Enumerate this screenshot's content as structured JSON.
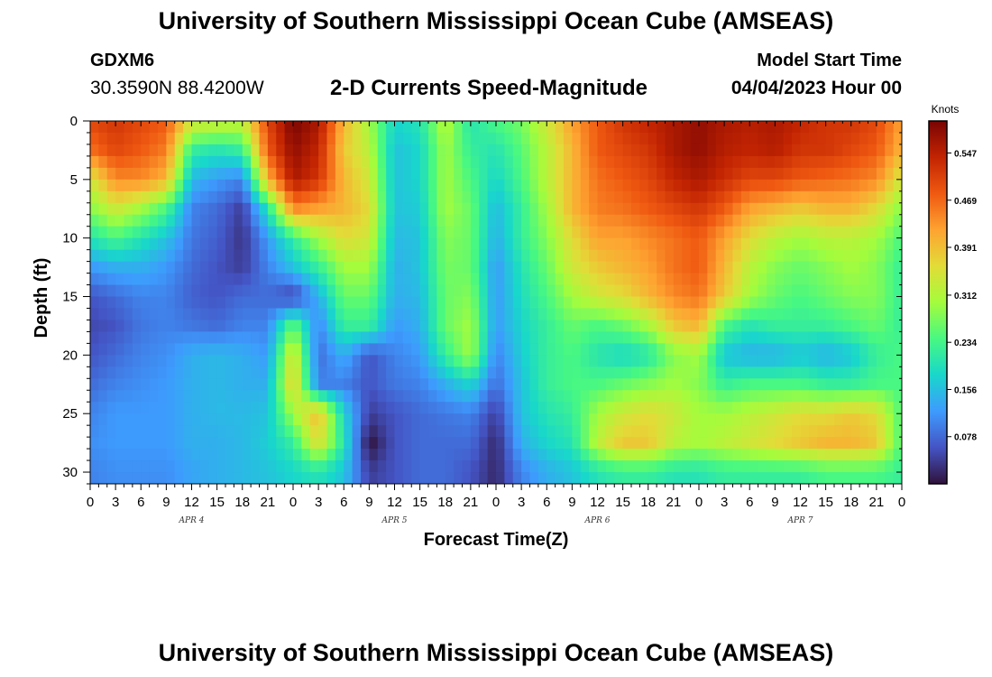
{
  "header": {
    "title": "University of Southern Mississippi Ocean Cube (AMSEAS)",
    "station": "GDXM6",
    "coords": "30.3590N  88.4200W",
    "subtitle": "2-D Currents Speed-Magnitude",
    "model_start_label": "Model Start Time",
    "model_start_value": "04/04/2023 Hour 00"
  },
  "footer": {
    "title": "University of Southern Mississippi Ocean Cube (AMSEAS)"
  },
  "chart_data": {
    "type": "heatmap",
    "title": "2-D Currents Speed-Magnitude",
    "xlabel": "Forecast Time(Z)",
    "ylabel": "Depth (ft)",
    "xlim": [
      0,
      96
    ],
    "ylim": [
      0,
      31
    ],
    "y_inverted": true,
    "x_tick_hours": [
      0,
      3,
      6,
      9,
      12,
      15,
      18,
      21,
      24,
      27,
      30,
      33,
      36,
      39,
      42,
      45,
      48,
      51,
      54,
      57,
      60,
      63,
      66,
      69,
      72,
      75,
      78,
      81,
      84,
      87,
      90,
      93,
      96
    ],
    "x_tick_labels": [
      "0",
      "3",
      "6",
      "9",
      "12",
      "15",
      "18",
      "21",
      "0",
      "3",
      "6",
      "9",
      "12",
      "15",
      "18",
      "21",
      "0",
      "3",
      "6",
      "9",
      "12",
      "15",
      "18",
      "21",
      "0",
      "3",
      "6",
      "9",
      "12",
      "15",
      "18",
      "21",
      "0"
    ],
    "y_ticks": [
      0,
      5,
      10,
      15,
      20,
      25,
      30
    ],
    "y_tick_labels": [
      "0",
      "5",
      "10",
      "15",
      "20",
      "25",
      "30"
    ],
    "day_labels": [
      {
        "label": "APR 4",
        "hour": 12
      },
      {
        "label": "APR 5",
        "hour": 36
      },
      {
        "label": "APR 6",
        "hour": 60
      },
      {
        "label": "APR 7",
        "hour": 84
      }
    ],
    "colorbar": {
      "title": "Knots",
      "min": 0.0,
      "max": 0.6,
      "ticks": [
        0.547,
        0.469,
        0.391,
        0.312,
        0.234,
        0.156,
        0.078
      ],
      "tick_labels": [
        "0.547",
        "0.469",
        "0.391",
        "0.312",
        "0.234",
        "0.156",
        "0.078"
      ]
    },
    "units": "knots",
    "depths_ft": [
      0,
      2.5,
      5,
      7.5,
      10,
      12.5,
      15,
      17.5,
      20,
      22.5,
      25,
      27.5,
      30
    ],
    "hours": [
      0,
      3,
      6,
      9,
      12,
      15,
      18,
      21,
      24,
      27,
      30,
      33,
      36,
      39,
      42,
      45,
      48,
      51,
      54,
      57,
      60,
      63,
      66,
      69,
      72,
      75,
      78,
      81,
      84,
      87,
      90,
      93,
      96
    ],
    "values": [
      [
        0.5,
        0.52,
        0.5,
        0.48,
        0.35,
        0.34,
        0.33,
        0.5,
        0.6,
        0.56,
        0.4,
        0.3,
        0.18,
        0.2,
        0.32,
        0.2,
        0.24,
        0.27,
        0.34,
        0.42,
        0.48,
        0.52,
        0.54,
        0.56,
        0.58,
        0.56,
        0.55,
        0.56,
        0.54,
        0.52,
        0.52,
        0.5,
        0.42
      ],
      [
        0.46,
        0.5,
        0.48,
        0.45,
        0.22,
        0.2,
        0.22,
        0.48,
        0.58,
        0.54,
        0.38,
        0.32,
        0.16,
        0.18,
        0.3,
        0.22,
        0.2,
        0.25,
        0.32,
        0.4,
        0.48,
        0.5,
        0.52,
        0.56,
        0.58,
        0.55,
        0.54,
        0.55,
        0.52,
        0.52,
        0.5,
        0.48,
        0.4
      ],
      [
        0.34,
        0.44,
        0.44,
        0.4,
        0.15,
        0.12,
        0.1,
        0.4,
        0.56,
        0.52,
        0.4,
        0.34,
        0.16,
        0.18,
        0.3,
        0.24,
        0.18,
        0.24,
        0.32,
        0.4,
        0.46,
        0.48,
        0.5,
        0.54,
        0.56,
        0.53,
        0.5,
        0.5,
        0.48,
        0.47,
        0.46,
        0.44,
        0.34
      ],
      [
        0.28,
        0.34,
        0.3,
        0.24,
        0.1,
        0.08,
        0.04,
        0.2,
        0.44,
        0.42,
        0.4,
        0.36,
        0.16,
        0.17,
        0.3,
        0.26,
        0.15,
        0.22,
        0.3,
        0.4,
        0.45,
        0.46,
        0.48,
        0.5,
        0.52,
        0.48,
        0.42,
        0.4,
        0.38,
        0.4,
        0.4,
        0.36,
        0.28
      ],
      [
        0.2,
        0.24,
        0.2,
        0.16,
        0.09,
        0.07,
        0.03,
        0.12,
        0.22,
        0.3,
        0.36,
        0.34,
        0.15,
        0.16,
        0.28,
        0.26,
        0.14,
        0.22,
        0.28,
        0.36,
        0.42,
        0.42,
        0.44,
        0.46,
        0.48,
        0.42,
        0.36,
        0.32,
        0.3,
        0.32,
        0.32,
        0.3,
        0.24
      ],
      [
        0.12,
        0.14,
        0.14,
        0.12,
        0.08,
        0.06,
        0.04,
        0.1,
        0.16,
        0.22,
        0.3,
        0.3,
        0.14,
        0.16,
        0.27,
        0.26,
        0.12,
        0.2,
        0.26,
        0.34,
        0.38,
        0.4,
        0.42,
        0.46,
        0.48,
        0.4,
        0.32,
        0.28,
        0.26,
        0.28,
        0.3,
        0.28,
        0.22
      ],
      [
        0.06,
        0.08,
        0.1,
        0.1,
        0.07,
        0.06,
        0.08,
        0.08,
        0.04,
        0.14,
        0.26,
        0.26,
        0.14,
        0.15,
        0.26,
        0.28,
        0.12,
        0.19,
        0.24,
        0.3,
        0.34,
        0.36,
        0.4,
        0.44,
        0.46,
        0.38,
        0.3,
        0.26,
        0.24,
        0.26,
        0.28,
        0.28,
        0.22
      ],
      [
        0.05,
        0.06,
        0.09,
        0.1,
        0.09,
        0.08,
        0.1,
        0.1,
        0.26,
        0.1,
        0.22,
        0.22,
        0.12,
        0.14,
        0.26,
        0.3,
        0.12,
        0.18,
        0.22,
        0.26,
        0.24,
        0.26,
        0.3,
        0.38,
        0.4,
        0.24,
        0.2,
        0.22,
        0.22,
        0.22,
        0.24,
        0.26,
        0.22
      ],
      [
        0.06,
        0.08,
        0.1,
        0.11,
        0.14,
        0.15,
        0.14,
        0.12,
        0.36,
        0.08,
        0.14,
        0.06,
        0.1,
        0.12,
        0.22,
        0.3,
        0.1,
        0.17,
        0.22,
        0.24,
        0.2,
        0.18,
        0.2,
        0.28,
        0.3,
        0.16,
        0.14,
        0.14,
        0.16,
        0.14,
        0.16,
        0.22,
        0.24
      ],
      [
        0.08,
        0.1,
        0.11,
        0.12,
        0.14,
        0.15,
        0.14,
        0.14,
        0.38,
        0.1,
        0.1,
        0.06,
        0.09,
        0.1,
        0.14,
        0.18,
        0.08,
        0.16,
        0.22,
        0.24,
        0.24,
        0.26,
        0.28,
        0.3,
        0.28,
        0.22,
        0.24,
        0.24,
        0.24,
        0.22,
        0.22,
        0.24,
        0.24
      ],
      [
        0.1,
        0.12,
        0.12,
        0.12,
        0.14,
        0.15,
        0.15,
        0.16,
        0.3,
        0.4,
        0.18,
        0.04,
        0.06,
        0.08,
        0.09,
        0.1,
        0.04,
        0.16,
        0.2,
        0.22,
        0.3,
        0.34,
        0.36,
        0.34,
        0.3,
        0.3,
        0.32,
        0.34,
        0.36,
        0.36,
        0.38,
        0.36,
        0.24
      ],
      [
        0.11,
        0.12,
        0.12,
        0.12,
        0.14,
        0.14,
        0.15,
        0.17,
        0.22,
        0.36,
        0.2,
        0.0,
        0.06,
        0.08,
        0.08,
        0.08,
        0.02,
        0.14,
        0.18,
        0.2,
        0.32,
        0.38,
        0.38,
        0.32,
        0.3,
        0.32,
        0.34,
        0.36,
        0.38,
        0.4,
        0.4,
        0.38,
        0.24
      ],
      [
        0.1,
        0.11,
        0.11,
        0.11,
        0.13,
        0.14,
        0.15,
        0.16,
        0.18,
        0.2,
        0.16,
        0.04,
        0.06,
        0.08,
        0.08,
        0.06,
        0.02,
        0.1,
        0.14,
        0.16,
        0.2,
        0.22,
        0.22,
        0.2,
        0.2,
        0.22,
        0.22,
        0.22,
        0.22,
        0.24,
        0.24,
        0.24,
        0.22
      ]
    ]
  }
}
